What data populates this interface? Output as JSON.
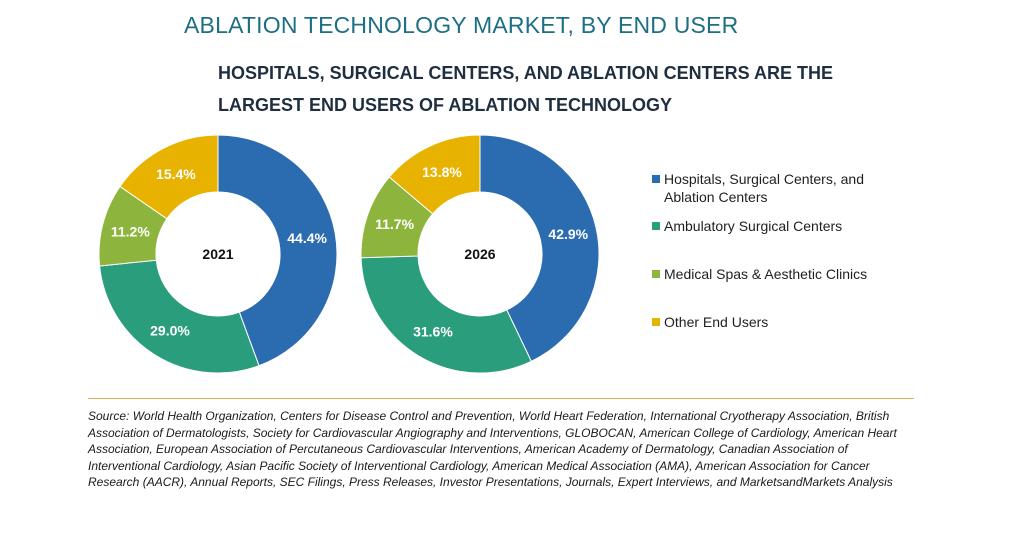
{
  "title": "ABLATION TECHNOLOGY MARKET, BY END USER",
  "subtitle": "HOSPITALS, SURGICAL CENTERS, AND ABLATION CENTERS ARE THE LARGEST END USERS OF ABLATION TECHNOLOGY",
  "colors": {
    "hospitals": "#2b6cb0",
    "ambulatory": "#2a9d7c",
    "medical_spas": "#8db53d",
    "other": "#e8b300"
  },
  "chart_data": [
    {
      "type": "pie",
      "center_label": "2021",
      "categories": [
        "Hospitals, Surgical Centers, and Ablation Centers",
        "Ambulatory Surgical Centers",
        "Medical Spas & Aesthetic Clinics",
        "Other End Users"
      ],
      "values": [
        44.4,
        29.0,
        11.2,
        15.4
      ],
      "labels": [
        "44.4%",
        "29.0%",
        "11.2%",
        "15.4%"
      ]
    },
    {
      "type": "pie",
      "center_label": "2026",
      "categories": [
        "Hospitals, Surgical Centers, and Ablation Centers",
        "Ambulatory Surgical Centers",
        "Medical Spas & Aesthetic Clinics",
        "Other End Users"
      ],
      "values": [
        42.9,
        31.6,
        11.7,
        13.8
      ],
      "labels": [
        "42.9%",
        "31.6%",
        "11.7%",
        "13.8%"
      ]
    }
  ],
  "legend": [
    {
      "label": "Hospitals, Surgical Centers, and Ablation Centers",
      "color": "#2b6cb0"
    },
    {
      "label": "Ambulatory Surgical Centers",
      "color": "#2a9d7c"
    },
    {
      "label": "Medical Spas & Aesthetic Clinics",
      "color": "#8db53d"
    },
    {
      "label": "Other End Users",
      "color": "#e8b300"
    }
  ],
  "source": "Source: World Health Organization, Centers for Disease Control and Prevention, World Heart Federation, International Cryotherapy Association, British Association of Dermatologists, Society for Cardiovascular Angiography and Interventions, GLOBOCAN, American College of Cardiology, American Heart Association, European Association of Percutaneous Cardiovascular Interventions, American Academy of Dermatology, Canadian Association of Interventional Cardiology, Asian Pacific Society of Interventional Cardiology, American Medical Association (AMA), American Association for Cancer Research (AACR), Annual Reports, SEC Filings, Press Releases, Investor Presentations, Journals, Expert Interviews, and MarketsandMarkets Analysis"
}
